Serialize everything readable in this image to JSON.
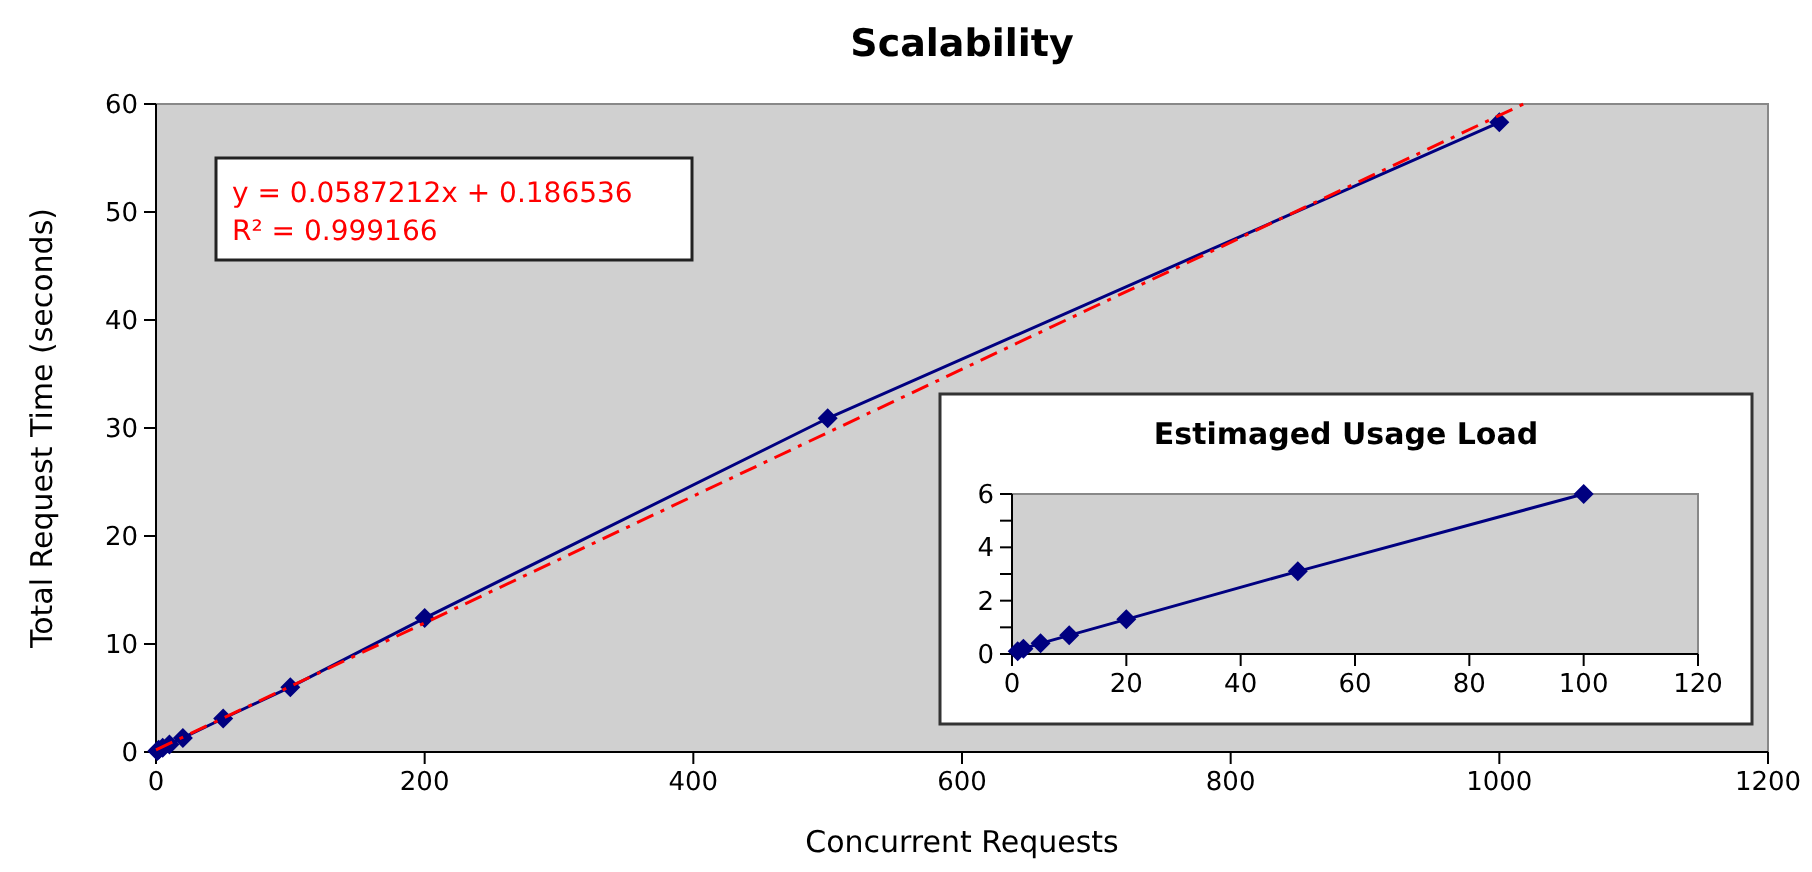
{
  "chart_data": [
    {
      "type": "line",
      "title": "Scalability",
      "xlabel": "Concurrent Requests",
      "ylabel": "Total Request Time (seconds)",
      "xlim": [
        0,
        1200
      ],
      "xticks": [
        0,
        200,
        400,
        600,
        800,
        1000,
        1200
      ],
      "ylim": [
        0,
        60
      ],
      "yticks": [
        0,
        10,
        20,
        30,
        40,
        50,
        60
      ],
      "annotations": [
        "y = 0.0587212x + 0.186536",
        "R² = 0.999166"
      ],
      "series": [
        {
          "color": "#000080",
          "marker": "diamond",
          "line_style": "solid",
          "x": [
            1,
            2,
            5,
            10,
            20,
            50,
            100,
            200,
            500,
            1000
          ],
          "values": [
            0.1,
            0.2,
            0.4,
            0.7,
            1.3,
            3.1,
            6,
            12.4,
            30.9,
            58.3
          ]
        },
        {
          "color": "#ff0000",
          "marker": "none",
          "line_style": "dashed",
          "x": [
            0,
            1018
          ],
          "values": [
            0.2,
            60
          ]
        }
      ]
    },
    {
      "type": "line",
      "title": "Estimaged Usage Load",
      "xlim": [
        0,
        120
      ],
      "xticks": [
        0,
        20,
        40,
        60,
        80,
        100,
        120
      ],
      "ylim": [
        0,
        6
      ],
      "yticks": [
        0,
        {
          "value": 1,
          "label": null
        },
        2,
        {
          "value": 3,
          "label": null
        },
        4,
        {
          "value": 5,
          "label": null
        },
        6
      ],
      "series": [
        {
          "color": "#000080",
          "marker": "diamond",
          "line_style": "solid",
          "x": [
            1,
            2,
            5,
            10,
            20,
            50,
            100
          ],
          "values": [
            0.1,
            0.2,
            0.4,
            0.7,
            1.3,
            3.1,
            6
          ]
        }
      ]
    }
  ]
}
